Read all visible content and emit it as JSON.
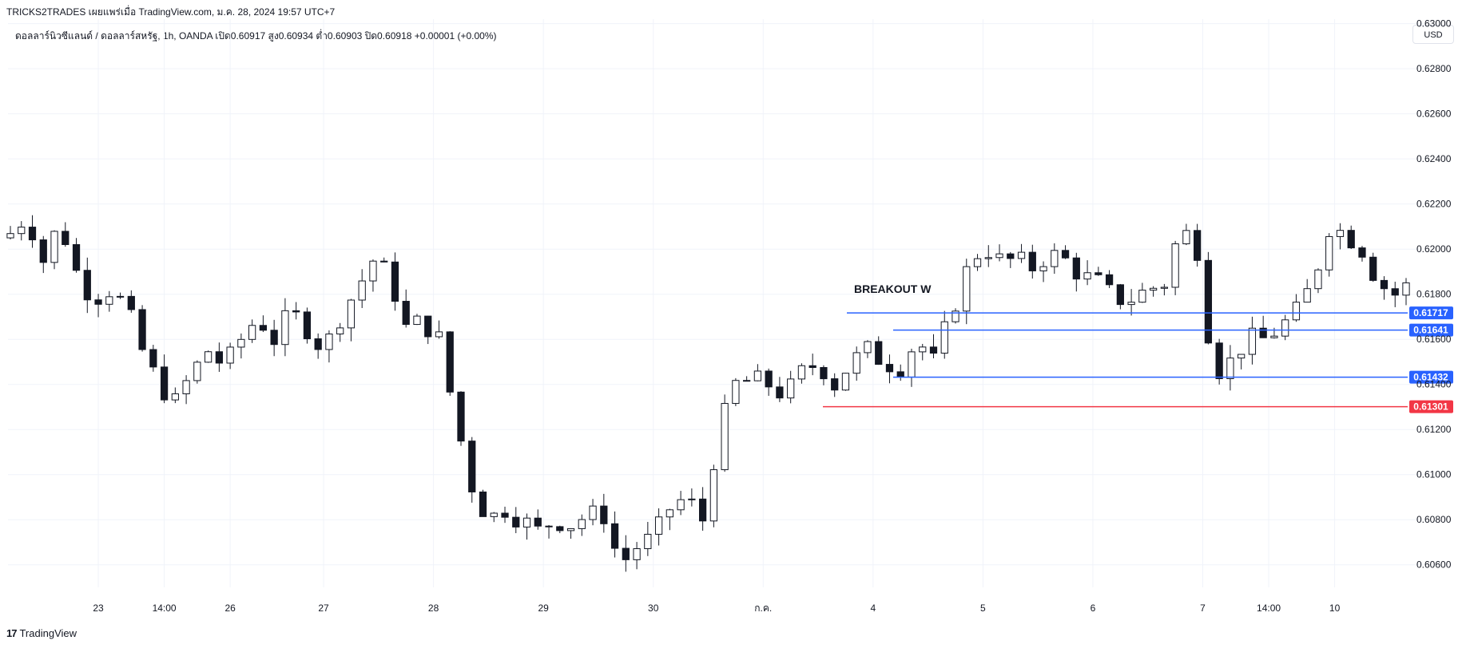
{
  "header": {
    "publish_line": "TRICKS2TRADES เผยแพร่เมื่อ TradingView.com, ม.ค. 28, 2024 19:57 UTC+7",
    "legend_line": "ดอลลาร์นิวซีแลนด์ / ดอลลาร์สหรัฐ, 1h, OANDA  เปิด0.60917  สูง0.60934  ต่ำ0.60903  ปิด0.60918  +0.00001 (+0.00%)",
    "currency_button": "USD"
  },
  "footer": {
    "brand": "TradingView",
    "logo_glyph": "17"
  },
  "chart_data": {
    "type": "candlestick",
    "symbol": "NZD/USD",
    "interval": "1h",
    "broker": "OANDA",
    "y_axis": {
      "ylim": [
        0.605,
        0.6302
      ],
      "ticks": [
        "0.60600",
        "0.60800",
        "0.61000",
        "0.61200",
        "0.61400",
        "0.61600",
        "0.61800",
        "0.62000",
        "0.62200",
        "0.62400",
        "0.62600",
        "0.62800",
        "0.63000"
      ]
    },
    "x_axis": {
      "ticks": [
        {
          "label": "23",
          "index": 8
        },
        {
          "label": "14:00",
          "index": 14
        },
        {
          "label": "26",
          "index": 20
        },
        {
          "label": "27",
          "index": 28.5
        },
        {
          "label": "28",
          "index": 38.5
        },
        {
          "label": "29",
          "index": 48.5
        },
        {
          "label": "30",
          "index": 58.5
        },
        {
          "label": "ก.ค.",
          "index": 68.5
        },
        {
          "label": "4",
          "index": 78.5
        },
        {
          "label": "5",
          "index": 88.5
        },
        {
          "label": "6",
          "index": 98.5
        },
        {
          "label": "7",
          "index": 108.5
        },
        {
          "label": "14:00",
          "index": 114.5
        },
        {
          "label": "10",
          "index": 120.5
        }
      ]
    },
    "bars_count": 128,
    "close_path": [
      [
        0,
        0.6207
      ],
      [
        3,
        0.6215
      ],
      [
        6,
        0.6195
      ],
      [
        9,
        0.6212
      ],
      [
        12,
        0.619
      ],
      [
        15,
        0.6178
      ],
      [
        18,
        0.6182
      ],
      [
        21,
        0.6175
      ],
      [
        24,
        0.6155
      ],
      [
        27,
        0.614
      ],
      [
        30,
        0.6132
      ],
      [
        33,
        0.6145
      ],
      [
        36,
        0.6155
      ],
      [
        39,
        0.6148
      ],
      [
        42,
        0.616
      ],
      [
        45,
        0.617
      ],
      [
        48,
        0.616
      ],
      [
        51,
        0.6172
      ],
      [
        54,
        0.6165
      ],
      [
        57,
        0.6155
      ],
      [
        60,
        0.617
      ],
      [
        63,
        0.6182
      ],
      [
        66,
        0.6195
      ],
      [
        69,
        0.6188
      ],
      [
        72,
        0.6165
      ],
      [
        75,
        0.6168
      ],
      [
        78,
        0.616
      ],
      [
        81,
        0.6125
      ],
      [
        84,
        0.6095
      ],
      [
        87,
        0.608
      ],
      [
        90,
        0.6085
      ],
      [
        93,
        0.608
      ],
      [
        96,
        0.6075
      ],
      [
        99,
        0.608
      ],
      [
        102,
        0.6078
      ],
      [
        105,
        0.6082
      ],
      [
        108,
        0.6082
      ],
      [
        111,
        0.606
      ],
      [
        114,
        0.6068
      ],
      [
        117,
        0.6072
      ],
      [
        120,
        0.6085
      ],
      [
        123,
        0.609
      ],
      [
        126,
        0.608
      ],
      [
        129,
        0.612
      ],
      [
        132,
        0.614
      ],
      [
        135,
        0.6142
      ],
      [
        138,
        0.614
      ],
      [
        141,
        0.6135
      ],
      [
        144,
        0.6145
      ],
      [
        147,
        0.615
      ],
      [
        150,
        0.614
      ],
      [
        153,
        0.615
      ],
      [
        156,
        0.6155
      ],
      [
        159,
        0.615
      ],
      [
        162,
        0.6148
      ],
      [
        165,
        0.616
      ],
      [
        168,
        0.615
      ],
      [
        171,
        0.617
      ],
      [
        174,
        0.619
      ],
      [
        177,
        0.6202
      ],
      [
        180,
        0.6195
      ],
      [
        183,
        0.6195
      ],
      [
        186,
        0.6192
      ],
      [
        189,
        0.6198
      ],
      [
        192,
        0.6195
      ],
      [
        195,
        0.6188
      ],
      [
        198,
        0.6185
      ],
      [
        201,
        0.6178
      ],
      [
        204,
        0.6178
      ],
      [
        207,
        0.6182
      ],
      [
        210,
        0.6185
      ],
      [
        213,
        0.621
      ],
      [
        216,
        0.62
      ],
      [
        219,
        0.6145
      ],
      [
        222,
        0.615
      ],
      [
        225,
        0.616
      ],
      [
        228,
        0.616
      ],
      [
        231,
        0.6165
      ],
      [
        234,
        0.6172
      ],
      [
        237,
        0.6185
      ],
      [
        240,
        0.621
      ],
      [
        243,
        0.6207
      ],
      [
        246,
        0.62
      ],
      [
        249,
        0.6185
      ],
      [
        252,
        0.618
      ],
      [
        255,
        0.6185
      ],
      [
        256,
        0.6172
      ]
    ],
    "path_index_scale": "close_path index runs 0-256 across the 128 bars (bar = path_index / 2)",
    "price_lines": [
      {
        "price": 0.61717,
        "label": "0.61717",
        "color": "#2962ff"
      },
      {
        "price": 0.61641,
        "label": "0.61641",
        "color": "#2962ff"
      },
      {
        "price": 0.61432,
        "label": "0.61432",
        "color": "#2962ff"
      },
      {
        "price": 0.61301,
        "label": "0.61301",
        "color": "#f23645"
      }
    ],
    "annotations": [
      {
        "text": "BREAKOUT W"
      }
    ],
    "colors": {
      "candle_body_up": "#ffffff",
      "candle_body_down": "#131722",
      "candle_outline": "#131722",
      "grid": "#f0f3fa",
      "blue_line": "#2962ff",
      "red_line": "#f23645"
    }
  }
}
